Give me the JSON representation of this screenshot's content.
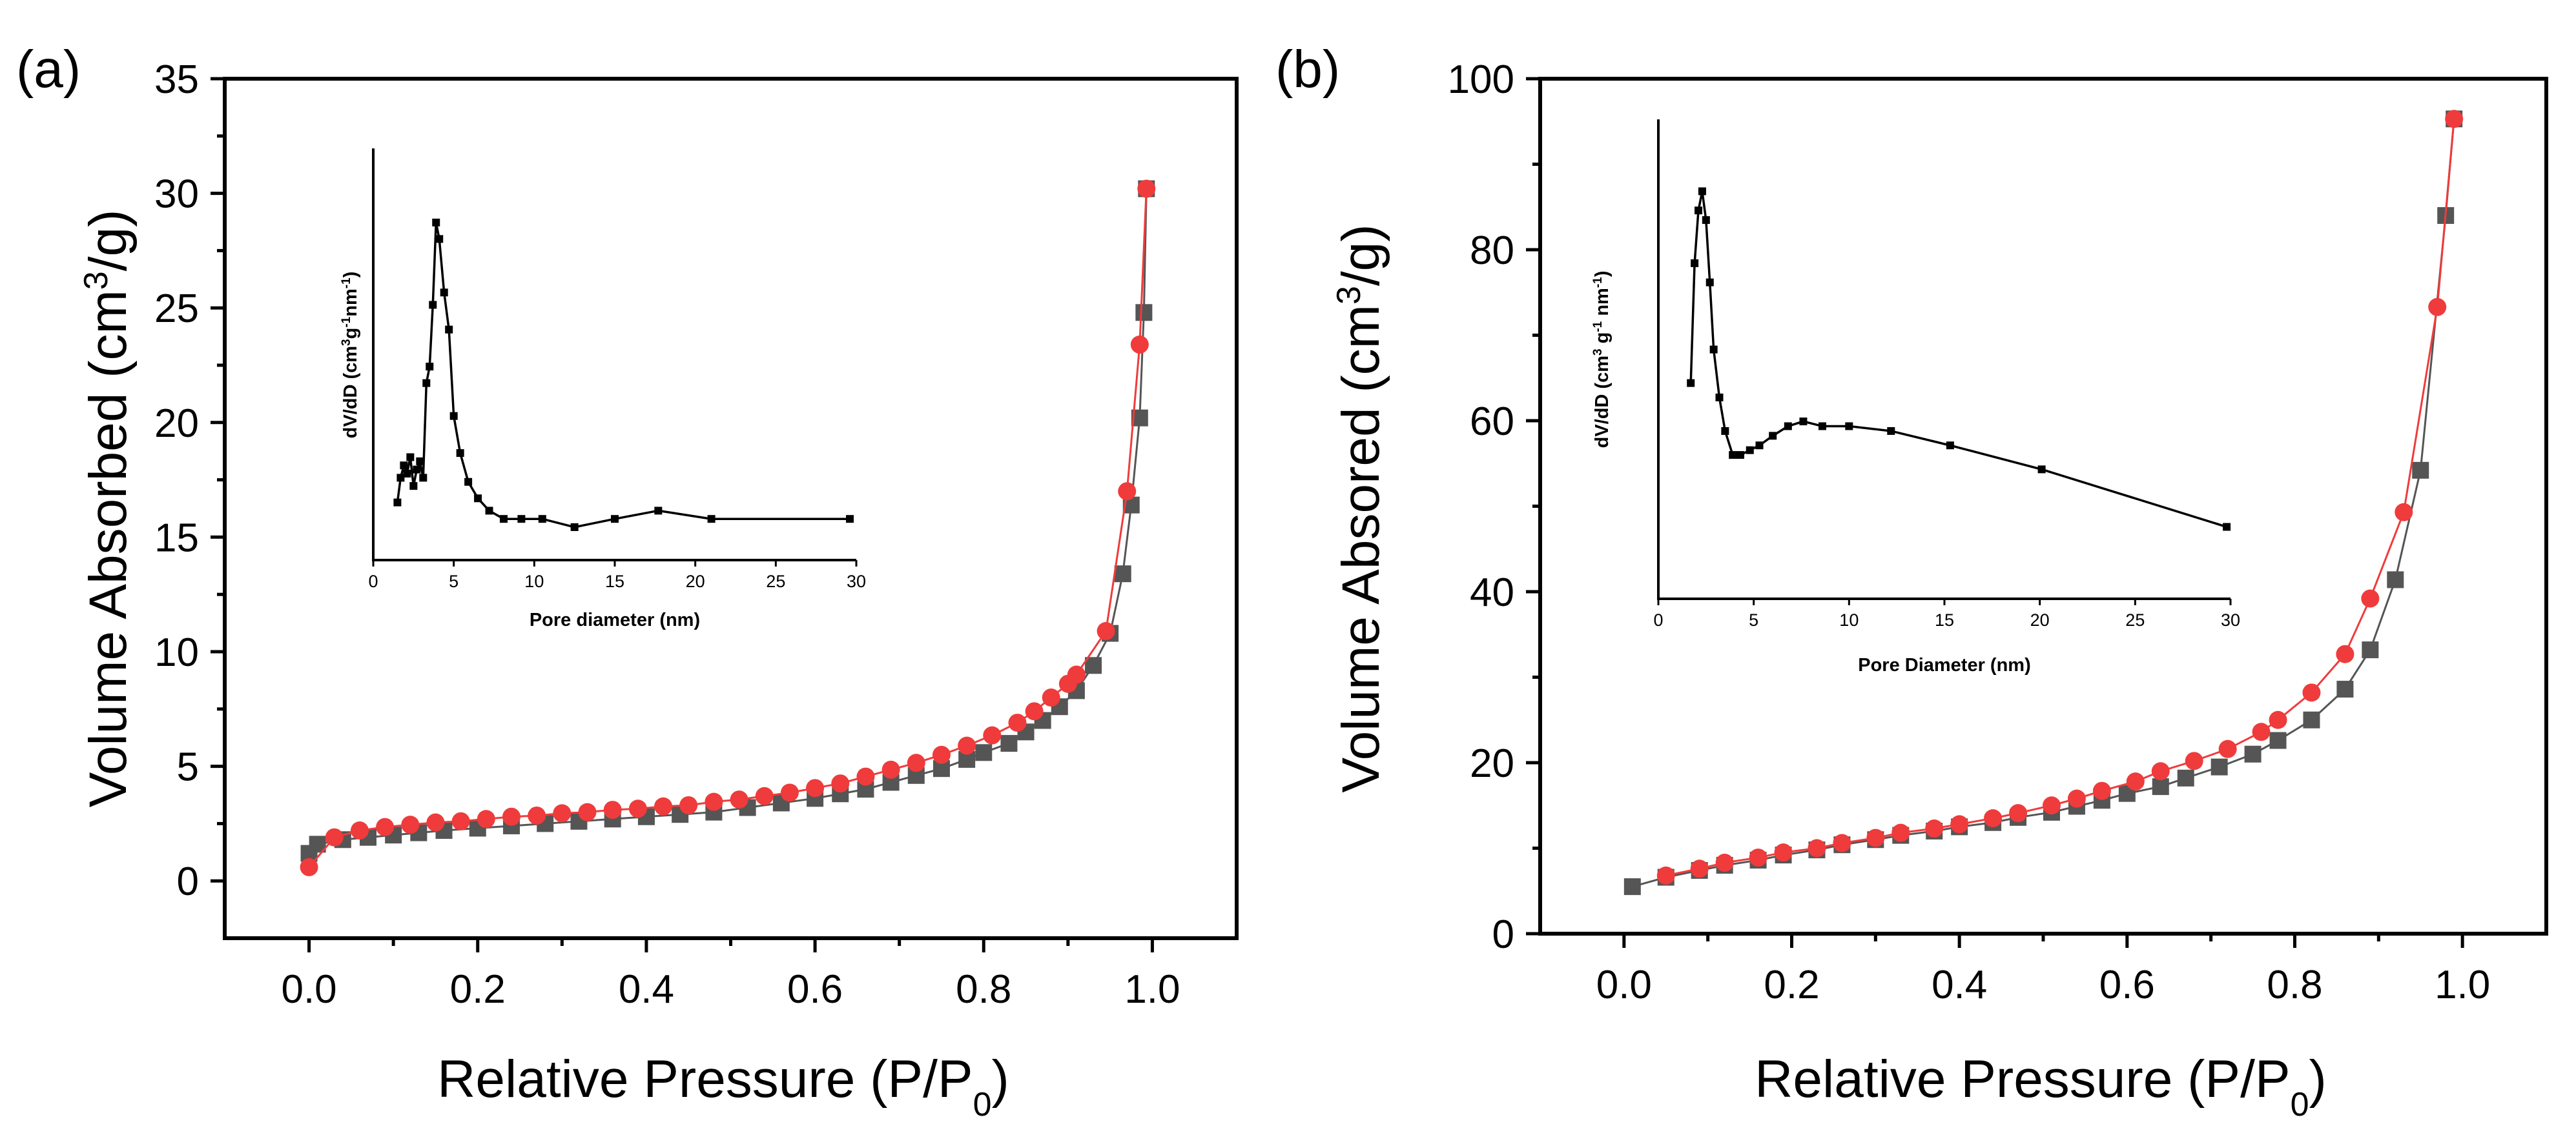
{
  "panels": [
    {
      "label": "(a)",
      "xlabel_main": "Relative Pressure (P/P",
      "xlabel_sub": "0",
      "xlabel_end": ")",
      "ylabel_main": "Volume Absorbed (cm",
      "ylabel_sup": "3",
      "ylabel_end": "/g)"
    },
    {
      "label": "(b)",
      "xlabel_main": "Relative Pressure (P/P",
      "xlabel_sub": "0",
      "xlabel_end": ")",
      "ylabel_main": "Volume Absored (cm",
      "ylabel_sup": "3",
      "ylabel_end": "/g)"
    }
  ],
  "insets": [
    {
      "xlabel": "Pore diameter (nm)",
      "ylabel_parts": [
        "dV/dD (cm",
        "3",
        "g",
        "-1",
        "nm",
        "-1",
        ")"
      ]
    },
    {
      "xlabel": "Pore Diameter (nm)",
      "ylabel_parts": [
        "dV/dD (cm",
        "3",
        " g",
        "-1",
        " nm",
        "-1",
        ")"
      ]
    }
  ],
  "colors": {
    "adsorption": "#555555",
    "desorption": "#ef3b3b",
    "line": "#000000"
  },
  "chart_data": [
    {
      "type": "scatter",
      "title": "(a)",
      "xlabel": "Relative Pressure (P/P0)",
      "ylabel": "Volume Absorbed (cm3/g)",
      "xlim": [
        -0.1,
        1.1
      ],
      "ylim": [
        -2.5,
        35
      ],
      "xticks": [
        0.0,
        0.2,
        0.4,
        0.6,
        0.8,
        1.0
      ],
      "xtick_labels": [
        "0.0",
        "0.2",
        "0.4",
        "0.6",
        "0.8",
        "1.0"
      ],
      "yticks": [
        0,
        5,
        10,
        15,
        20,
        25,
        30,
        35
      ],
      "ytick_labels": [
        "0",
        "5",
        "10",
        "15",
        "20",
        "25",
        "30",
        "35"
      ],
      "series": [
        {
          "name": "adsorption",
          "marker": "square",
          "x": [
            0.0,
            0.01,
            0.04,
            0.07,
            0.1,
            0.13,
            0.16,
            0.2,
            0.24,
            0.28,
            0.32,
            0.36,
            0.4,
            0.44,
            0.48,
            0.52,
            0.56,
            0.6,
            0.63,
            0.66,
            0.69,
            0.72,
            0.75,
            0.78,
            0.8,
            0.83,
            0.85,
            0.87,
            0.89,
            0.91,
            0.93,
            0.95,
            0.965,
            0.975,
            0.985,
            0.99,
            0.993
          ],
          "y": [
            1.2,
            1.6,
            1.8,
            1.9,
            2.0,
            2.1,
            2.2,
            2.3,
            2.4,
            2.5,
            2.6,
            2.7,
            2.8,
            2.9,
            3.0,
            3.2,
            3.4,
            3.6,
            3.8,
            4.0,
            4.3,
            4.6,
            4.9,
            5.3,
            5.6,
            6.0,
            6.5,
            7.0,
            7.6,
            8.3,
            9.4,
            10.8,
            13.4,
            16.4,
            20.2,
            24.8,
            30.2
          ]
        },
        {
          "name": "desorption",
          "marker": "circle",
          "x": [
            0.0,
            0.03,
            0.06,
            0.09,
            0.12,
            0.15,
            0.18,
            0.21,
            0.24,
            0.27,
            0.3,
            0.33,
            0.36,
            0.39,
            0.42,
            0.45,
            0.48,
            0.51,
            0.54,
            0.57,
            0.6,
            0.63,
            0.66,
            0.69,
            0.72,
            0.75,
            0.78,
            0.81,
            0.84,
            0.86,
            0.88,
            0.9,
            0.91,
            0.945,
            0.97,
            0.985,
            0.993
          ],
          "y": [
            0.6,
            1.9,
            2.2,
            2.35,
            2.45,
            2.55,
            2.6,
            2.7,
            2.8,
            2.85,
            2.95,
            3.0,
            3.1,
            3.15,
            3.25,
            3.3,
            3.45,
            3.55,
            3.7,
            3.85,
            4.05,
            4.25,
            4.55,
            4.85,
            5.15,
            5.5,
            5.9,
            6.35,
            6.9,
            7.4,
            8.0,
            8.6,
            9.0,
            10.9,
            17.0,
            23.4,
            30.2
          ]
        }
      ],
      "inset": {
        "type": "line",
        "xlabel": "Pore diameter (nm)",
        "ylabel": "dV/dD (cm3g-1nm-1)",
        "xlim": [
          0,
          30
        ],
        "ylim": [
          0,
          1
        ],
        "xticks": [
          0,
          5,
          10,
          15,
          20,
          25,
          30
        ],
        "xtick_labels": [
          "0",
          "5",
          "10",
          "15",
          "20",
          "25",
          "30"
        ],
        "x": [
          1.5,
          1.7,
          1.9,
          2.1,
          2.3,
          2.5,
          2.7,
          2.9,
          3.1,
          3.3,
          3.5,
          3.7,
          3.9,
          4.1,
          4.4,
          4.7,
          5.0,
          5.4,
          5.9,
          6.5,
          7.2,
          8.1,
          9.2,
          10.5,
          12.5,
          15.0,
          17.7,
          21.0,
          29.6
        ],
        "y": [
          0.14,
          0.2,
          0.23,
          0.21,
          0.25,
          0.18,
          0.22,
          0.24,
          0.2,
          0.43,
          0.47,
          0.62,
          0.82,
          0.78,
          0.65,
          0.56,
          0.35,
          0.26,
          0.19,
          0.15,
          0.12,
          0.1,
          0.1,
          0.1,
          0.08,
          0.1,
          0.12,
          0.1,
          0.1
        ]
      }
    },
    {
      "type": "scatter",
      "title": "(b)",
      "xlabel": "Relative Pressure (P/P0)",
      "ylabel": "Volume Absored (cm3/g)",
      "xlim": [
        -0.1,
        1.1
      ],
      "ylim": [
        0,
        100
      ],
      "xticks": [
        0.0,
        0.2,
        0.4,
        0.6,
        0.8,
        1.0
      ],
      "xtick_labels": [
        "0.0",
        "0.2",
        "0.4",
        "0.6",
        "0.8",
        "1.0"
      ],
      "yticks": [
        0,
        20,
        40,
        60,
        80,
        100
      ],
      "ytick_labels": [
        "0",
        "20",
        "40",
        "60",
        "80",
        "100"
      ],
      "series": [
        {
          "name": "adsorption",
          "marker": "square",
          "x": [
            0.01,
            0.05,
            0.09,
            0.12,
            0.16,
            0.19,
            0.23,
            0.26,
            0.3,
            0.33,
            0.37,
            0.4,
            0.44,
            0.47,
            0.51,
            0.54,
            0.57,
            0.6,
            0.64,
            0.67,
            0.71,
            0.75,
            0.78,
            0.82,
            0.86,
            0.89,
            0.92,
            0.95,
            0.98,
            0.99
          ],
          "y": [
            5.5,
            6.6,
            7.4,
            8.0,
            8.6,
            9.2,
            9.8,
            10.4,
            11.0,
            11.5,
            12.0,
            12.5,
            13.0,
            13.6,
            14.2,
            14.9,
            15.6,
            16.4,
            17.2,
            18.2,
            19.5,
            21.0,
            22.6,
            25.0,
            28.6,
            33.2,
            41.4,
            54.2,
            84.0,
            95.3
          ]
        },
        {
          "name": "desorption",
          "marker": "circle",
          "x": [
            0.05,
            0.09,
            0.12,
            0.16,
            0.19,
            0.23,
            0.26,
            0.3,
            0.33,
            0.37,
            0.4,
            0.44,
            0.47,
            0.51,
            0.54,
            0.57,
            0.61,
            0.64,
            0.68,
            0.72,
            0.76,
            0.78,
            0.82,
            0.86,
            0.89,
            0.93,
            0.97,
            0.99
          ],
          "y": [
            6.8,
            7.6,
            8.3,
            8.9,
            9.5,
            10.0,
            10.6,
            11.2,
            11.8,
            12.3,
            12.8,
            13.5,
            14.1,
            15.0,
            15.8,
            16.7,
            17.8,
            19.0,
            20.2,
            21.6,
            23.6,
            25.0,
            28.2,
            32.7,
            39.2,
            49.3,
            73.3,
            95.3
          ]
        }
      ],
      "inset": {
        "type": "line",
        "xlabel": "Pore Diameter (nm)",
        "ylabel": "dV/dD (cm3 g-1 nm-1)",
        "xlim": [
          0,
          30
        ],
        "ylim": [
          0,
          1
        ],
        "xticks": [
          0,
          5,
          10,
          15,
          20,
          25,
          30
        ],
        "xtick_labels": [
          "0",
          "5",
          "10",
          "15",
          "20",
          "25",
          "30"
        ],
        "x": [
          1.7,
          1.9,
          2.1,
          2.3,
          2.5,
          2.7,
          2.9,
          3.2,
          3.5,
          3.9,
          4.3,
          4.8,
          5.3,
          6.0,
          6.8,
          7.6,
          8.6,
          10.0,
          12.2,
          15.3,
          20.1,
          29.8
        ],
        "y": [
          0.45,
          0.7,
          0.81,
          0.85,
          0.79,
          0.66,
          0.52,
          0.42,
          0.35,
          0.3,
          0.3,
          0.31,
          0.32,
          0.34,
          0.36,
          0.37,
          0.36,
          0.36,
          0.35,
          0.32,
          0.27,
          0.15
        ]
      }
    }
  ]
}
